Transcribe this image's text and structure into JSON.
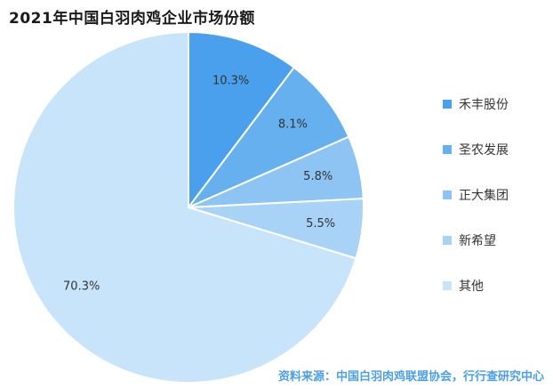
{
  "chart_data": {
    "type": "pie",
    "title": "2021年中国白羽肉鸡企业市场份额",
    "slices": [
      {
        "label": "禾丰股份",
        "value": 10.3,
        "value_label": "10.3%",
        "color": "#4ba0ee"
      },
      {
        "label": "圣农发展",
        "value": 8.1,
        "value_label": "8.1%",
        "color": "#66b0f0"
      },
      {
        "label": "正大集团",
        "value": 5.8,
        "value_label": "5.8%",
        "color": "#8ec4f3"
      },
      {
        "label": "新希望",
        "value": 5.5,
        "value_label": "5.5%",
        "color": "#a9d3f6"
      },
      {
        "label": "其他",
        "value": 70.3,
        "value_label": "70.3%",
        "color": "#c8e4fb"
      }
    ],
    "start_angle": "top",
    "direction": "clockwise",
    "legend_position": "right"
  },
  "source_note": "资料来源：中国白羽肉鸡联盟协会，行行查研究中心"
}
